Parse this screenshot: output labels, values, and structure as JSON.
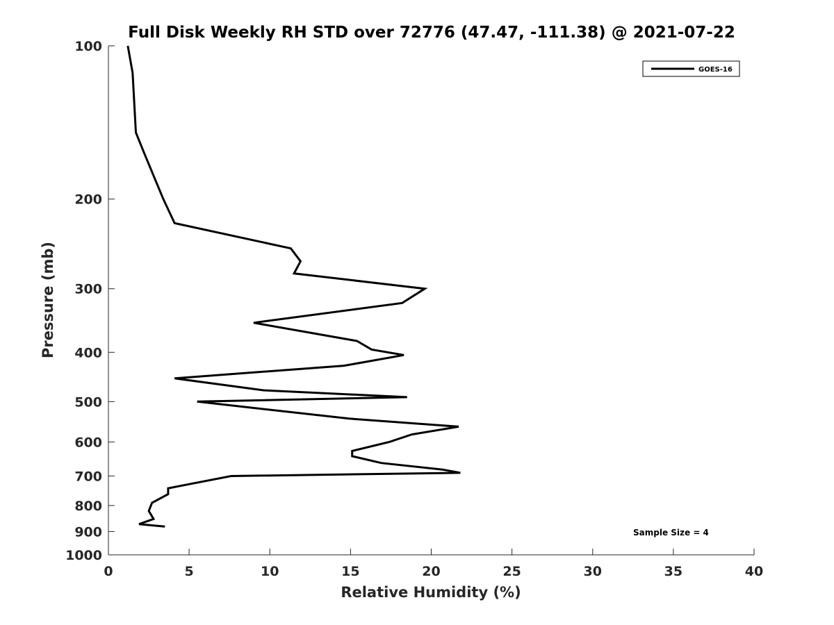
{
  "chart_data": {
    "type": "line",
    "title": "Full Disk Weekly RH STD over 72776 (47.47, -111.38) @ 2021-07-22",
    "xlabel": "Relative Humidity (%)",
    "ylabel": "Pressure (mb)",
    "xlim": [
      0,
      40
    ],
    "ylim": [
      100,
      1000
    ],
    "yscale": "log",
    "y_reversed": true,
    "x_ticks": [
      0,
      5,
      10,
      15,
      20,
      25,
      30,
      35,
      40
    ],
    "y_ticks": [
      100,
      200,
      300,
      400,
      500,
      600,
      700,
      800,
      900,
      1000
    ],
    "grid": false,
    "legend_position": "top-right",
    "annotation": "Sample Size = 4",
    "series": [
      {
        "name": "GOES-16",
        "color": "#000000",
        "x": [
          1.2,
          1.5,
          1.7,
          2.2,
          2.8,
          3.4,
          4.1,
          11.3,
          11.9,
          11.5,
          19.6,
          18.2,
          9.0,
          15.4,
          16.3,
          18.3,
          14.6,
          4.1,
          9.6,
          18.5,
          5.5,
          14.9,
          21.7,
          18.8,
          17.4,
          15.1,
          15.1,
          16.9,
          20.7,
          21.8,
          7.6,
          3.7,
          3.7,
          2.7,
          2.5,
          2.8,
          1.9,
          3.5
        ],
        "y": [
          100,
          113,
          148,
          162,
          180,
          200,
          223,
          250,
          265,
          280,
          300,
          320,
          350,
          380,
          395,
          405,
          425,
          450,
          475,
          490,
          500,
          540,
          560,
          580,
          600,
          625,
          640,
          660,
          680,
          690,
          700,
          740,
          760,
          790,
          820,
          850,
          870,
          880
        ]
      }
    ]
  }
}
